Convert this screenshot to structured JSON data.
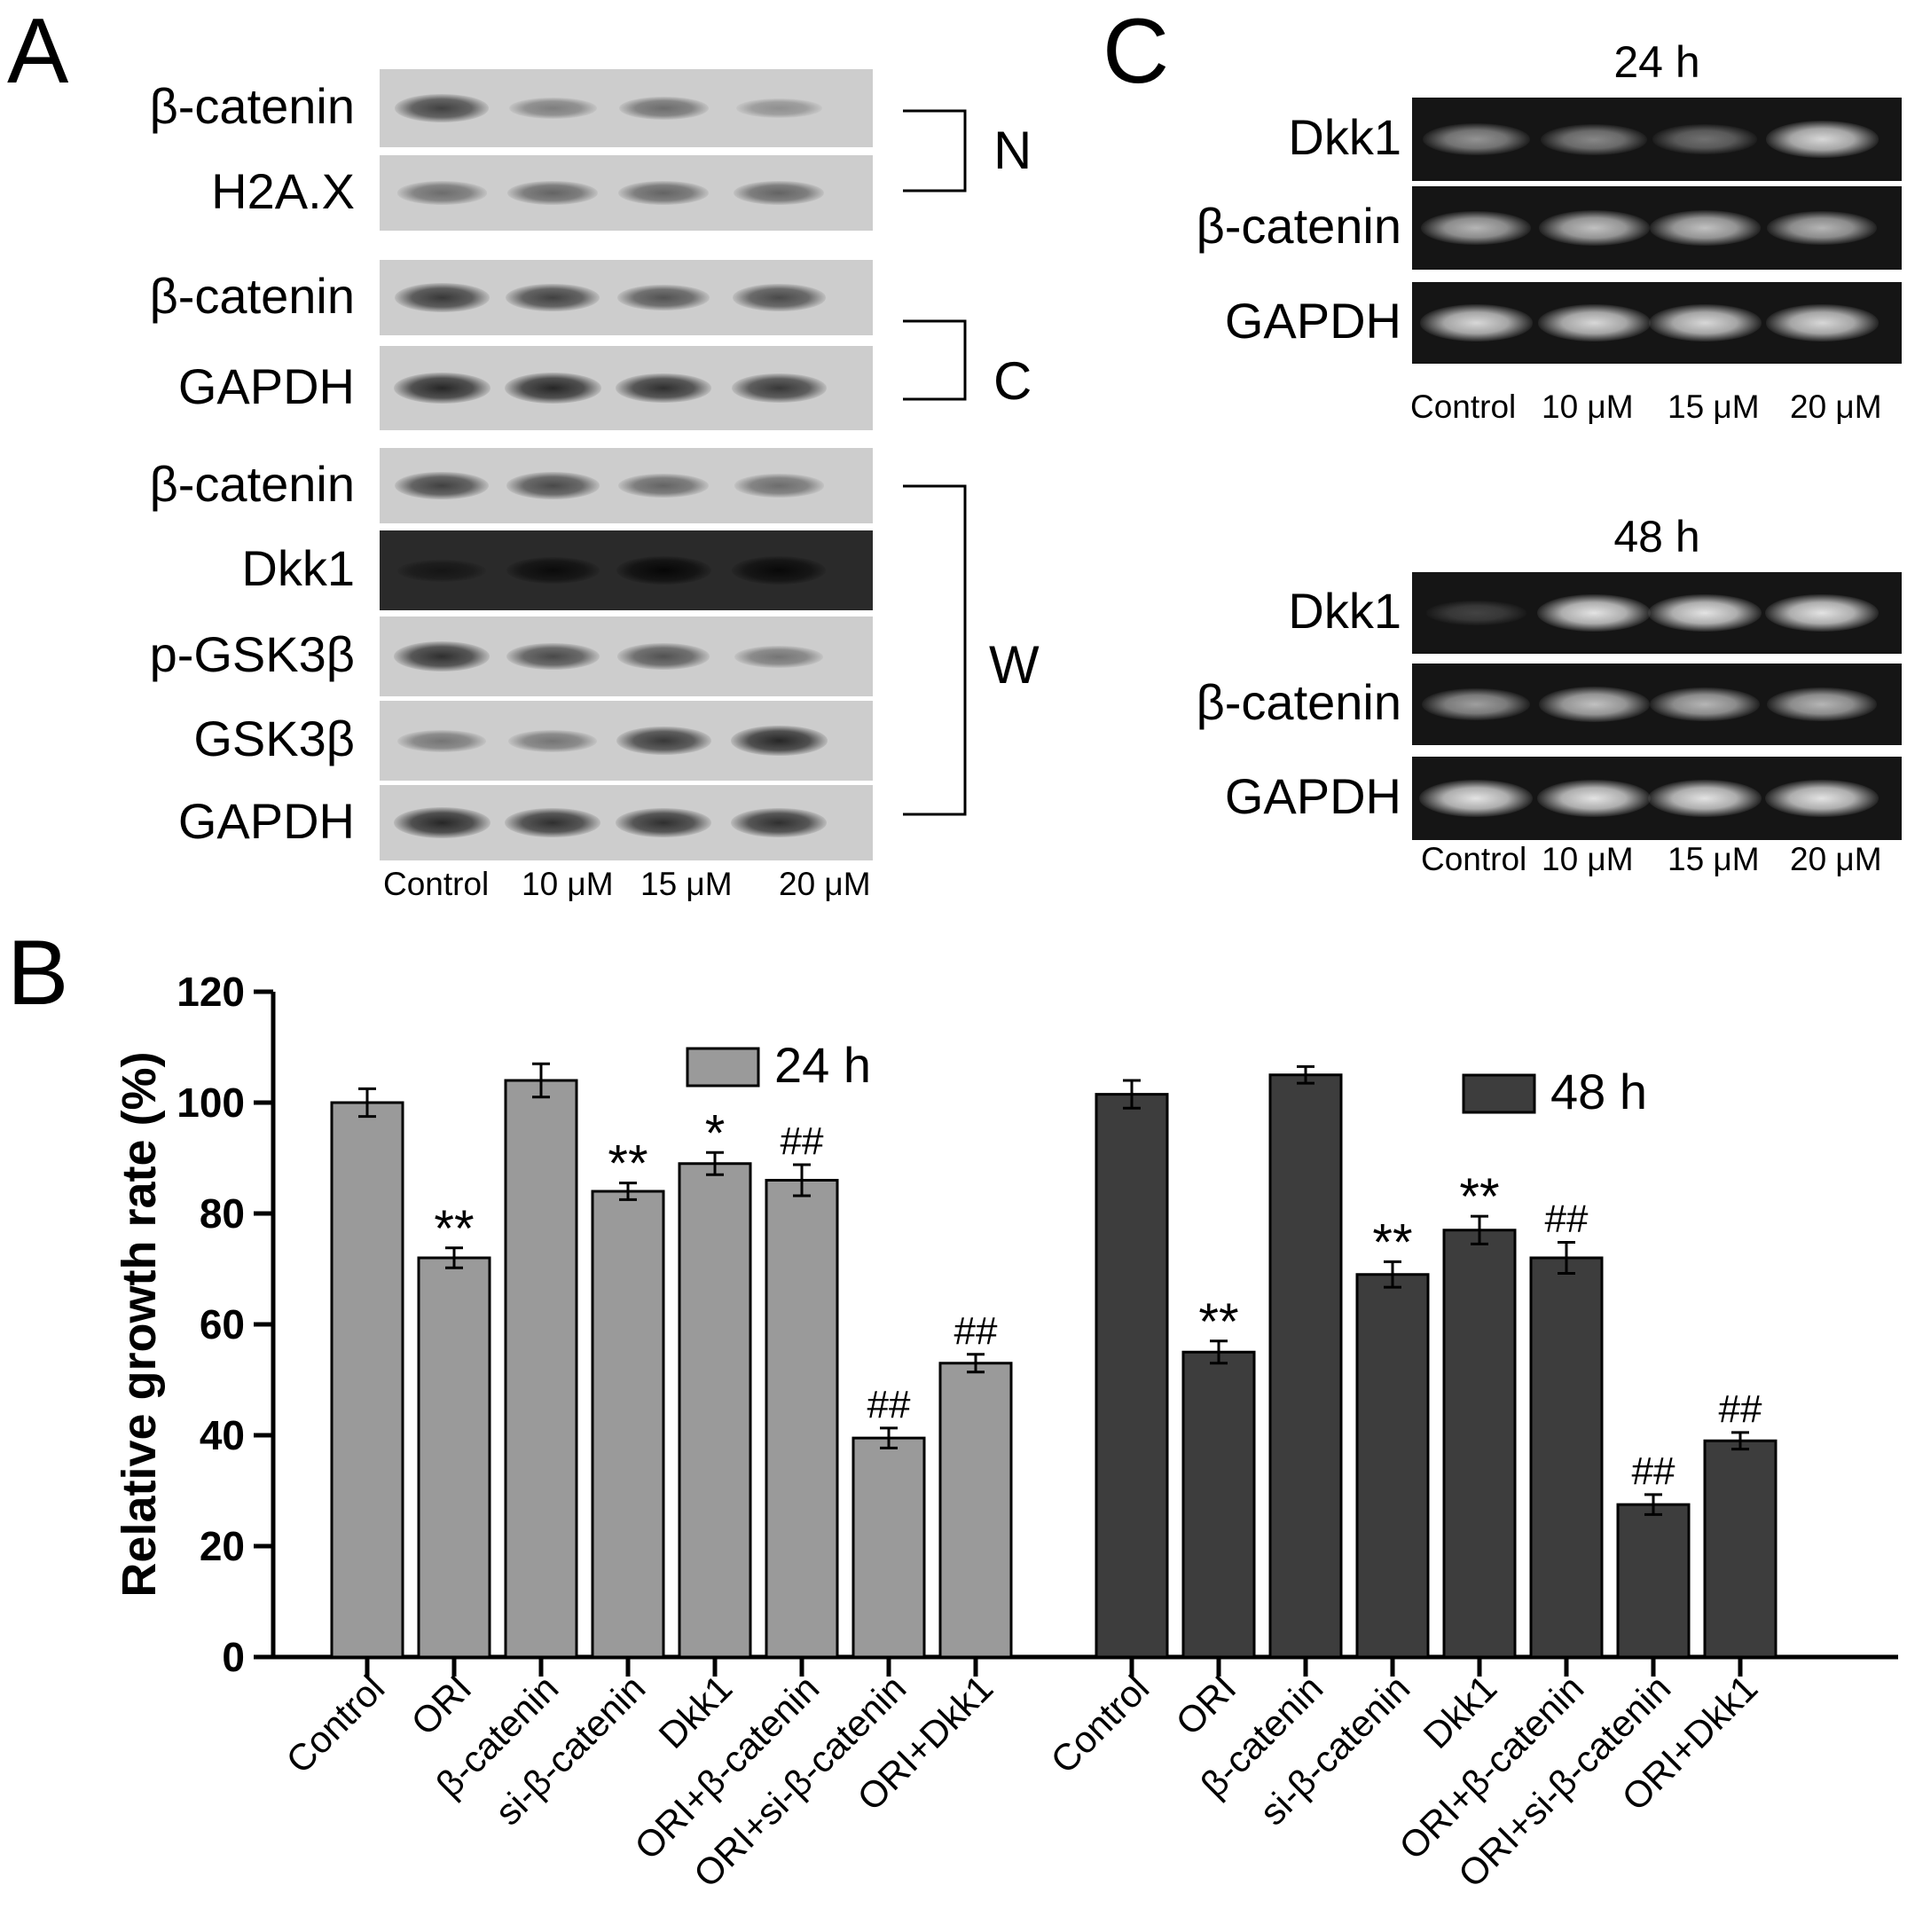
{
  "panels": {
    "a": "A",
    "b": "B",
    "c": "C"
  },
  "panel_a": {
    "rows": [
      {
        "label": "β-catenin",
        "bands": [
          0.8,
          0.45,
          0.55,
          0.35
        ]
      },
      {
        "label": "H2A.X",
        "bands": [
          0.55,
          0.6,
          0.6,
          0.6
        ]
      },
      {
        "label": "β-catenin",
        "bands": [
          0.85,
          0.8,
          0.7,
          0.75
        ]
      },
      {
        "label": "GAPDH",
        "bands": [
          0.95,
          0.95,
          0.9,
          0.85
        ]
      },
      {
        "label": "β-catenin",
        "bands": [
          0.8,
          0.75,
          0.6,
          0.55
        ]
      },
      {
        "label": "Dkk1",
        "bands": [
          0.5,
          0.75,
          0.85,
          0.8
        ]
      },
      {
        "label": "p-GSK3β",
        "bands": [
          0.9,
          0.75,
          0.7,
          0.5
        ]
      },
      {
        "label": "GSK3β",
        "bands": [
          0.5,
          0.5,
          0.85,
          0.95
        ]
      },
      {
        "label": "GAPDH",
        "bands": [
          0.95,
          0.9,
          0.9,
          0.9
        ]
      }
    ],
    "groups": [
      "N",
      "C",
      "W"
    ],
    "lanes": [
      "Control",
      "10 μM",
      "15 μM",
      "20 μM"
    ]
  },
  "panel_c": {
    "gels": [
      {
        "title": "24 h",
        "rows": [
          {
            "label": "Dkk1",
            "bands": [
              0.55,
              0.5,
              0.4,
              0.85
            ]
          },
          {
            "label": "β-catenin",
            "bands": [
              0.7,
              0.75,
              0.75,
              0.7
            ]
          },
          {
            "label": "GAPDH",
            "bands": [
              0.85,
              0.85,
              0.85,
              0.85
            ]
          }
        ],
        "lanes": [
          "Control",
          "10 μM",
          "15 μM",
          "20 μM"
        ]
      },
      {
        "title": "48 h",
        "rows": [
          {
            "label": "Dkk1",
            "bands": [
              0.15,
              0.9,
              0.9,
              0.9
            ]
          },
          {
            "label": "β-catenin",
            "bands": [
              0.6,
              0.75,
              0.7,
              0.7
            ]
          },
          {
            "label": "GAPDH",
            "bands": [
              0.9,
              0.9,
              0.9,
              0.9
            ]
          }
        ],
        "lanes": [
          "Control",
          "10 μM",
          "15 μM",
          "20 μM"
        ]
      }
    ]
  },
  "chart_data": {
    "type": "bar",
    "ylabel": "Relative growth rate (%)",
    "ylim": [
      0,
      120
    ],
    "yticks": [
      0,
      20,
      40,
      60,
      80,
      100,
      120
    ],
    "categories": [
      "Control",
      "ORI",
      "β-catenin",
      "si-β-catenin",
      "Dkk1",
      "ORI+β-catenin",
      "ORI+si-β-catenin",
      "ORI+Dkk1"
    ],
    "series": [
      {
        "name": "24 h",
        "color": "#9a9a9a",
        "values": [
          100,
          72,
          104,
          84,
          89,
          86,
          39.5,
          53
        ],
        "errors": [
          2.5,
          1.8,
          3,
          1.5,
          2,
          2.8,
          1.8,
          1.6
        ],
        "marks": [
          "",
          "**",
          "",
          "**",
          "*",
          "##",
          "##",
          "##"
        ]
      },
      {
        "name": "48 h",
        "color": "#3d3d3d",
        "values": [
          101.5,
          55,
          105,
          69,
          77,
          72,
          27.5,
          39
        ],
        "errors": [
          2.5,
          2,
          1.5,
          2.3,
          2.5,
          2.8,
          1.8,
          1.5
        ],
        "marks": [
          "",
          "**",
          "",
          "**",
          "**",
          "##",
          "##",
          "##"
        ]
      }
    ],
    "legend": "top"
  }
}
